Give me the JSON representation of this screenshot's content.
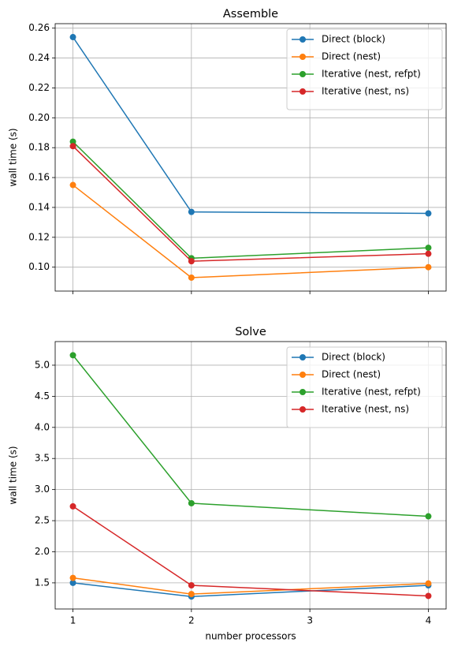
{
  "chart_data": [
    {
      "type": "line",
      "title": "Assemble",
      "y_label": "wall time (s)",
      "x": [
        1,
        2,
        4
      ],
      "xlim": [
        0.85,
        4.15
      ],
      "xticks": [
        1,
        2,
        3,
        4
      ],
      "show_xtick_labels": false,
      "ylim": [
        0.084,
        0.263
      ],
      "yticks": [
        {
          "value": 0.1,
          "label": "0.10"
        },
        {
          "value": 0.12,
          "label": "0.12"
        },
        {
          "value": 0.14,
          "label": "0.14"
        },
        {
          "value": 0.16,
          "label": "0.16"
        },
        {
          "value": 0.18,
          "label": "0.18"
        },
        {
          "value": 0.2,
          "label": "0.20"
        },
        {
          "value": 0.22,
          "label": "0.22"
        },
        {
          "value": 0.24,
          "label": "0.24"
        },
        {
          "value": 0.26,
          "label": "0.26"
        }
      ],
      "grid": true,
      "legend": "upper right",
      "series": [
        {
          "name": "Direct (block)",
          "color": "#1f77b4",
          "values": [
            0.254,
            0.137,
            0.136
          ]
        },
        {
          "name": "Direct (nest)",
          "color": "#ff7f0e",
          "values": [
            0.155,
            0.093,
            0.1
          ]
        },
        {
          "name": "Iterative (nest, refpt)",
          "color": "#2ca02c",
          "values": [
            0.184,
            0.106,
            0.113
          ]
        },
        {
          "name": "Iterative (nest, ns)",
          "color": "#d62728",
          "values": [
            0.181,
            0.104,
            0.109
          ]
        }
      ]
    },
    {
      "type": "line",
      "title": "Solve",
      "y_label": "wall time (s)",
      "x_label": "number processors",
      "x": [
        1,
        2,
        4
      ],
      "xlim": [
        0.85,
        4.15
      ],
      "xticks": [
        1,
        2,
        3,
        4
      ],
      "show_xtick_labels": true,
      "ylim": [
        1.08,
        5.38
      ],
      "yticks": [
        {
          "value": 1.5,
          "label": "1.5"
        },
        {
          "value": 2.0,
          "label": "2.0"
        },
        {
          "value": 2.5,
          "label": "2.5"
        },
        {
          "value": 3.0,
          "label": "3.0"
        },
        {
          "value": 3.5,
          "label": "3.5"
        },
        {
          "value": 4.0,
          "label": "4.0"
        },
        {
          "value": 4.5,
          "label": "4.5"
        },
        {
          "value": 5.0,
          "label": "5.0"
        }
      ],
      "grid": true,
      "legend": "upper right",
      "series": [
        {
          "name": "Direct (block)",
          "color": "#1f77b4",
          "values": [
            1.5,
            1.28,
            1.46
          ]
        },
        {
          "name": "Direct (nest)",
          "color": "#ff7f0e",
          "values": [
            1.58,
            1.32,
            1.49
          ]
        },
        {
          "name": "Iterative (nest, refpt)",
          "color": "#2ca02c",
          "values": [
            5.16,
            2.78,
            2.57
          ]
        },
        {
          "name": "Iterative (nest, ns)",
          "color": "#d62728",
          "values": [
            2.73,
            1.46,
            1.29
          ]
        }
      ]
    }
  ]
}
